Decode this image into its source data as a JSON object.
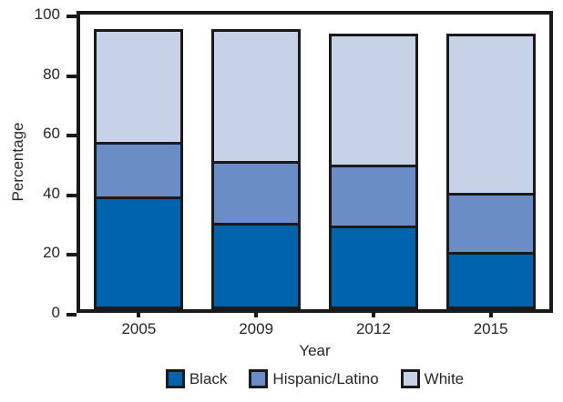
{
  "colors": {
    "axis": "#1a1a1a",
    "text": "#26262b",
    "background": "#ffffff"
  },
  "chart_data": {
    "type": "bar",
    "stacked": true,
    "title": "",
    "xlabel": "Year",
    "ylabel": "Percentage",
    "categories": [
      "2005",
      "2009",
      "2012",
      "2015"
    ],
    "series": [
      {
        "name": "Black",
        "color": "#0063ad",
        "values": [
          38,
          29,
          28,
          19
        ]
      },
      {
        "name": "Hispanic/Latino",
        "color": "#6a8cc7",
        "values": [
          19,
          21.5,
          21,
          20.5
        ]
      },
      {
        "name": "White",
        "color": "#c7d1e8",
        "values": [
          38,
          44.5,
          44.5,
          54
        ]
      }
    ],
    "totals": [
      95,
      95,
      93.5,
      93.5
    ],
    "ylim": [
      0,
      100
    ],
    "yticks": [
      0,
      20,
      40,
      60,
      80,
      100
    ],
    "grid": false,
    "legend_position": "bottom"
  }
}
